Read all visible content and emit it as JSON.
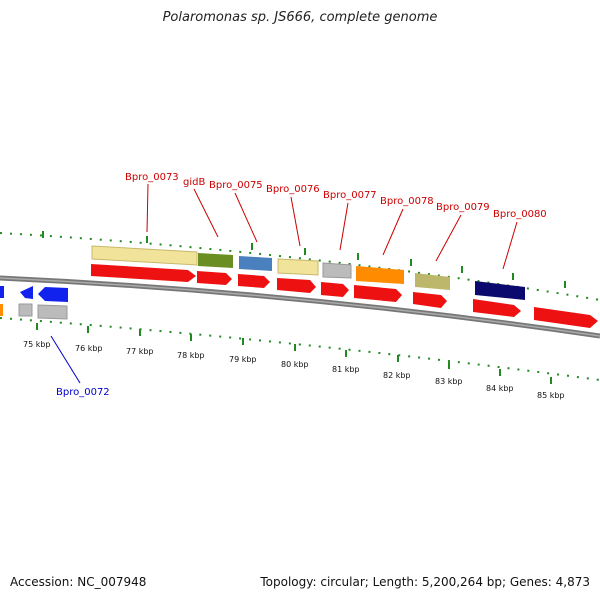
{
  "title": "Polaromonas sp. JS666, complete genome",
  "footer": {
    "accession": "Accession: NC_007948",
    "summary": "Topology: circular; Length: 5,200,264 bp; Genes: 4,873"
  },
  "scale": {
    "start_kbp": 75,
    "end_kbp": 85,
    "labels": [
      "75 kbp",
      "76 kbp",
      "77 kbp",
      "78 kbp",
      "79 kbp",
      "80 kbp",
      "81 kbp",
      "82 kbp",
      "83 kbp",
      "84 kbp",
      "85 kbp"
    ]
  },
  "gene_labels": [
    {
      "text": "Bpro_0072",
      "color": "#0000cc"
    },
    {
      "text": "Bpro_0073",
      "color": "#cc0000"
    },
    {
      "text": "gidB",
      "color": "#cc0000"
    },
    {
      "text": "Bpro_0075",
      "color": "#cc0000"
    },
    {
      "text": "Bpro_0076",
      "color": "#cc0000"
    },
    {
      "text": "Bpro_0077",
      "color": "#cc0000"
    },
    {
      "text": "Bpro_0078",
      "color": "#cc0000"
    },
    {
      "text": "Bpro_0079",
      "color": "#cc0000"
    },
    {
      "text": "Bpro_0080",
      "color": "#cc0000"
    }
  ],
  "colors": {
    "forward_cds": "#ee1111",
    "reverse_cds": "#1122ee",
    "backbone": "#808080",
    "tick_green": "#228822"
  }
}
